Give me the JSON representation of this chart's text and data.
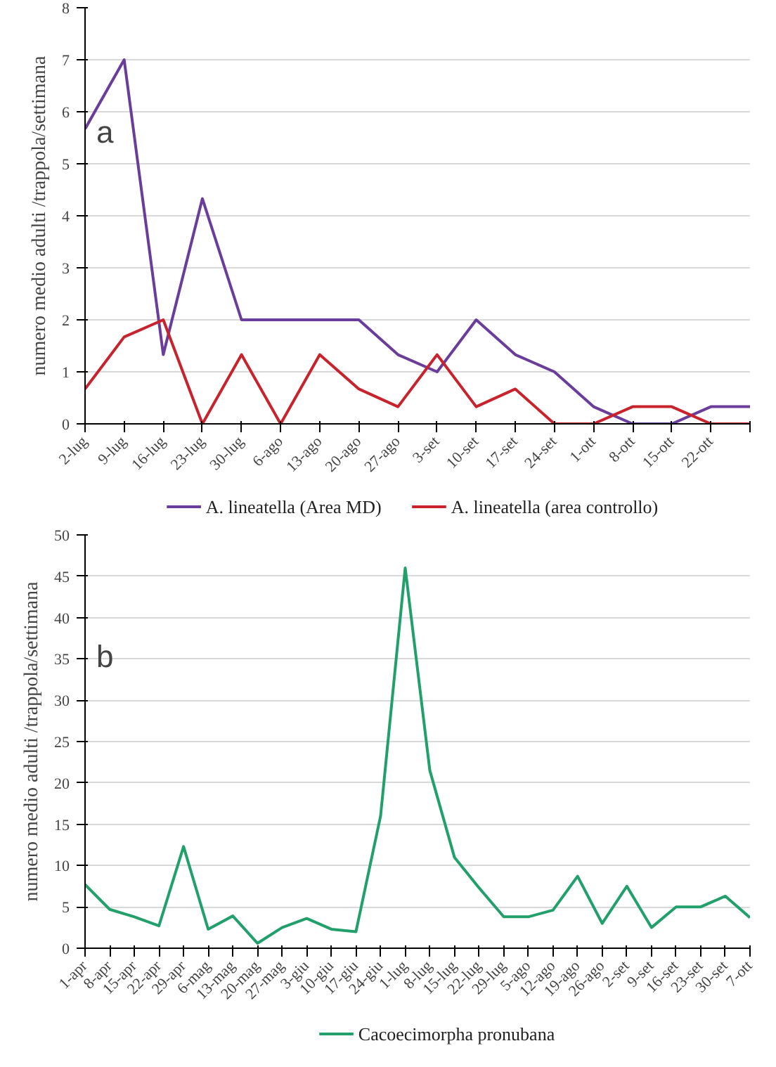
{
  "chart_data": [
    {
      "type": "line",
      "ylabel": "numero medio adulti /trappola/settimana",
      "annotations": [
        "a"
      ],
      "categories": [
        "2-lug",
        "9-lug",
        "16-lug",
        "23-lug",
        "30-lug",
        "6-ago",
        "13-ago",
        "20-ago",
        "27-ago",
        "3-set",
        "10-set",
        "17-set",
        "24-set",
        "1-ott",
        "8-ott",
        "15-ott",
        "22-ott",
        null
      ],
      "series": [
        {
          "name": "A. lineatella (Area MD)",
          "color": "#6a3d9a",
          "values": [
            5.67,
            7,
            1.33,
            4.33,
            2,
            2,
            2,
            2,
            1.33,
            1,
            2,
            1.33,
            1,
            0.33,
            0,
            0,
            0.33,
            0.33
          ]
        },
        {
          "name": "A. lineatella (area controllo)",
          "color": "#c8232c",
          "values": [
            0.67,
            1.67,
            2,
            0,
            1.33,
            0,
            1.33,
            0.67,
            0.33,
            1.33,
            0.33,
            0.67,
            0,
            0,
            0.33,
            0.33,
            0,
            0
          ]
        }
      ],
      "ylim": [
        0,
        8
      ],
      "yticks": [
        0,
        1,
        2,
        3,
        4,
        5,
        6,
        7,
        8
      ],
      "grid": "y",
      "legend": "bottom"
    },
    {
      "type": "line",
      "ylabel": "numero medio adulti /trappola/settimana",
      "annotations": [
        "b"
      ],
      "categories": [
        "1-apr",
        "8-apr",
        "15-apr",
        "22-apr",
        "29-apr",
        "6-mag",
        "13-mag",
        "20-mag",
        "27-mag",
        "3-giu",
        "10-giu",
        "17-giu",
        "24-giu",
        "1-lug",
        "8-lug",
        "15-lug",
        "22-lug",
        "29-lug",
        "5-ago",
        "12-ago",
        "19-ago",
        "26-ago",
        "2-set",
        "9-set",
        "16-set",
        "23-set",
        "30-set",
        "7-ott"
      ],
      "series": [
        {
          "name": "Cacoecimorpha pronubana",
          "color": "#22a06b",
          "values": [
            7.7,
            4.7,
            3.8,
            2.7,
            12.3,
            2.3,
            3.9,
            0.6,
            2.5,
            3.6,
            2.3,
            2.0,
            16,
            46,
            21.5,
            11,
            7.3,
            3.8,
            3.8,
            4.6,
            8.7,
            3.0,
            7.5,
            2.5,
            5.0,
            5.0,
            6.3,
            3.7
          ]
        }
      ],
      "ylim": [
        0,
        50
      ],
      "yticks": [
        0,
        5,
        10,
        15,
        20,
        25,
        30,
        35,
        40,
        45,
        50
      ],
      "grid": "y",
      "legend": "bottom"
    }
  ]
}
